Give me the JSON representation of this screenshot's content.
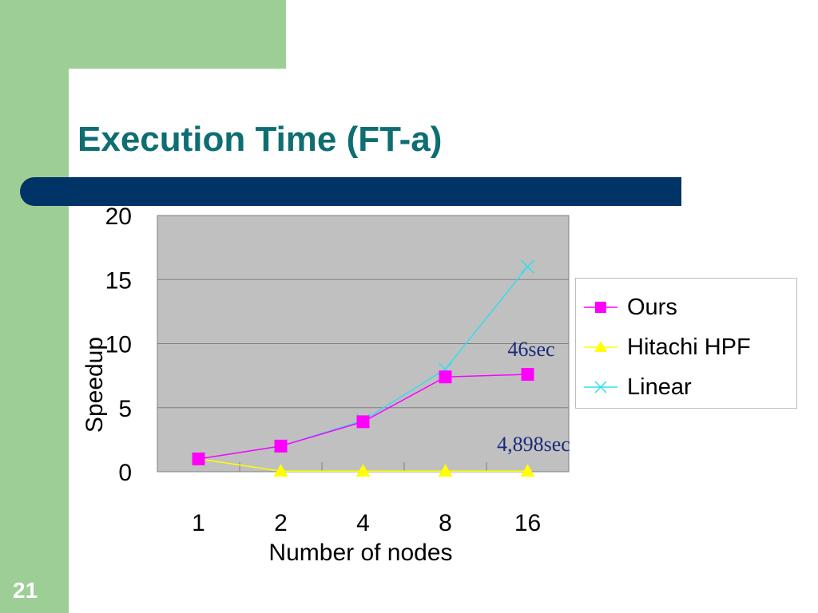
{
  "slide": {
    "title": "Execution Time (FT-a)",
    "number": "21"
  },
  "colors": {
    "sidebar": "#9dce96",
    "title": "#0e6e72",
    "rule": "#003366",
    "plot_bg": "#c0c0c0",
    "ours": "#ff00ff",
    "hitachi": "#ffff00",
    "linear": "#33ddee",
    "annotation": "#1a2a7a"
  },
  "chart_data": {
    "type": "line",
    "categories": [
      "1",
      "2",
      "4",
      "8",
      "16"
    ],
    "series": [
      {
        "name": "Ours",
        "values": [
          1,
          2,
          3.9,
          7.4,
          7.6
        ],
        "marker": "square"
      },
      {
        "name": "Hitachi HPF",
        "values": [
          1,
          0.05,
          0.05,
          0.05,
          0.05
        ],
        "marker": "triangle"
      },
      {
        "name": "Linear",
        "values": [
          1,
          2,
          4,
          8,
          16
        ],
        "marker": "x"
      }
    ],
    "xlabel": "Number of nodes",
    "ylabel": "Speedup",
    "ylim": [
      0,
      20
    ],
    "yticks": [
      "0",
      "5",
      "10",
      "15",
      "20"
    ],
    "grid": true,
    "legend_position": "right",
    "annotations": [
      "46sec",
      "4,898sec"
    ]
  }
}
